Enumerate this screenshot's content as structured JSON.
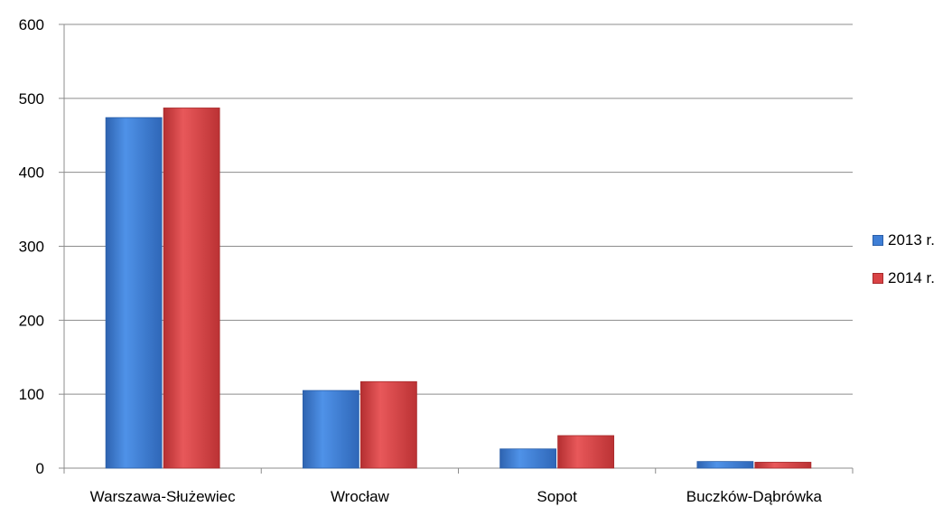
{
  "chart_data": {
    "type": "bar",
    "categories": [
      "Warszawa-Służewiec",
      "Wrocław",
      "Sopot",
      "Buczków-Dąbrówka"
    ],
    "series": [
      {
        "name": "2013 r.",
        "values": [
          474,
          105,
          26,
          9
        ],
        "color": "#3f7fd6"
      },
      {
        "name": "2014 r.",
        "values": [
          487,
          117,
          44,
          8
        ],
        "color": "#d94345"
      }
    ],
    "y_ticks": [
      "0",
      "100",
      "200",
      "300",
      "400",
      "500",
      "600"
    ],
    "ylim": [
      0,
      600
    ],
    "grid": true,
    "legend_position": "right",
    "title": "",
    "xlabel": "",
    "ylabel": ""
  }
}
